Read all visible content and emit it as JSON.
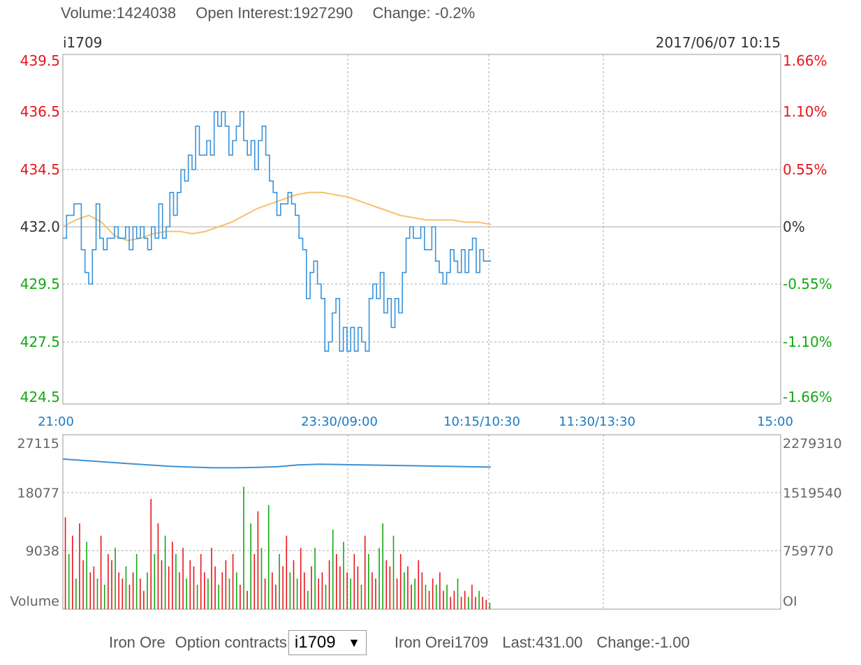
{
  "header": {
    "volume": "Volume:1424038",
    "open_interest": "Open Interest:1927290",
    "change": "Change: -0.2%"
  },
  "chart_data": [
    {
      "type": "line",
      "symbol": "i1709",
      "datetime": "2017/06/07 10:15",
      "y_tick_labels": [
        "439.5",
        "436.5",
        "434.5",
        "432.0",
        "429.5",
        "427.5",
        "424.5"
      ],
      "y_right_labels": [
        "1.66%",
        "1.10%",
        "0.55%",
        "0%",
        "-0.55%",
        "-1.10%",
        "-1.66%"
      ],
      "x_tick_labels": [
        "21:00",
        "23:30/09:00",
        "10:15/10:30",
        "11:30/13:30",
        "15:00"
      ],
      "ylim": [
        424.5,
        439.5
      ],
      "reference_price": 432.0,
      "colors": {
        "price": "#3a92d8",
        "average": "#f5c26b",
        "up": "#e8141a",
        "down": "#12a812",
        "axis_time": "#1a7bc4"
      },
      "series": [
        {
          "values": [
            431.5,
            432.5,
            432.5,
            433,
            433,
            431,
            430,
            429.5,
            431,
            433,
            431.5,
            431,
            431.5,
            431.5,
            432,
            431.5,
            431.5,
            432,
            431,
            432,
            431.5,
            432,
            431.5,
            431,
            432,
            431.5,
            433,
            431.5,
            432,
            433.5,
            432.5,
            433.5,
            434.5,
            434,
            435,
            434.5,
            436,
            435,
            435,
            435.5,
            435,
            436.5,
            436,
            436.5,
            436,
            435,
            435.5,
            436,
            436.5,
            435.5,
            435,
            435.5,
            434.5,
            435.5,
            436,
            435,
            434,
            433.5,
            432.5,
            433,
            433,
            433.5,
            433,
            432.5,
            431.5,
            431,
            429,
            430,
            430.5,
            429.5,
            429,
            427,
            427.5,
            428.5,
            429,
            427,
            428,
            427,
            428,
            427,
            428,
            427.5,
            427,
            429,
            429.5,
            429,
            430,
            428.5,
            429,
            428,
            429,
            428.5,
            430,
            431.5,
            432,
            431.5,
            431.5,
            432,
            431,
            431,
            432,
            430.5,
            430,
            429.5,
            430,
            431,
            430.5,
            430,
            431,
            430,
            431,
            431.5,
            430,
            431,
            430.5,
            430.5
          ]
        },
        {
          "values": [
            432,
            432.3,
            432.5,
            432.2,
            431.6,
            431.4,
            431.5,
            431.7,
            431.8,
            431.8,
            431.7,
            431.8,
            432,
            432.2,
            432.5,
            432.8,
            433,
            433.2,
            433.4,
            433.5,
            433.5,
            433.4,
            433.3,
            433.1,
            432.9,
            432.7,
            432.5,
            432.4,
            432.3,
            432.3,
            432.3,
            432.2,
            432.2,
            432.1
          ]
        }
      ]
    },
    {
      "type": "bar",
      "y_tick_labels": [
        "27115",
        "18077",
        "9038"
      ],
      "y_right_labels": [
        "2279310",
        "1519540",
        "759770",
        "OI"
      ],
      "y_label": "Volume",
      "ylim": [
        0,
        27115
      ],
      "oi_ylim": [
        0,
        2279310
      ],
      "oi_series": [
        2060000,
        2040000,
        2020000,
        2000000,
        1980000,
        1960000,
        1950000,
        1940000,
        1940000,
        1945000,
        1955000,
        1980000,
        1990000,
        1985000,
        1980000,
        1975000,
        1970000,
        1965000,
        1960000,
        1955000,
        1950000
      ],
      "volume_values": [
        15000,
        9000,
        12000,
        5000,
        14000,
        8000,
        11000,
        6000,
        7000,
        5000,
        12000,
        4000,
        9000,
        8000,
        10000,
        6000,
        5000,
        7000,
        4000,
        6000,
        9000,
        5000,
        3000,
        6000,
        18000,
        9000,
        14000,
        8000,
        12000,
        7000,
        11000,
        9000,
        6000,
        10000,
        5000,
        8000,
        7000,
        4000,
        9000,
        6000,
        5000,
        10000,
        7000,
        4000,
        6000,
        8000,
        5000,
        9000,
        6000,
        4000,
        20000,
        3000,
        14000,
        9000,
        16000,
        10000,
        5000,
        17000,
        6000,
        4000,
        9000,
        7000,
        12000,
        6000,
        8000,
        5000,
        10000,
        6000,
        3000,
        7000,
        10000,
        5000,
        6000,
        4000,
        8000,
        13000,
        9000,
        7000,
        11000,
        6000,
        5000,
        9000,
        7000,
        4000,
        12000,
        9000,
        6000,
        5000,
        10000,
        14000,
        8000,
        7000,
        12000,
        5000,
        9000,
        6000,
        7000,
        4000,
        5000,
        8000,
        6000,
        4000,
        3000,
        5000,
        4000,
        6000,
        3000,
        4000,
        2000,
        3000,
        5000,
        2000,
        3000,
        2000,
        4000,
        2000,
        3000,
        2000,
        1500,
        1000
      ],
      "volume_directions": [
        "u",
        "d",
        "u",
        "d",
        "u",
        "u",
        "d",
        "u",
        "u",
        "d",
        "u",
        "d",
        "u",
        "u",
        "d",
        "u",
        "u",
        "d",
        "u",
        "u",
        "d",
        "u",
        "u",
        "d",
        "u",
        "d",
        "u",
        "u",
        "d",
        "u",
        "u",
        "d",
        "u",
        "u",
        "d",
        "u",
        "u",
        "d",
        "u",
        "u",
        "d",
        "u",
        "u",
        "d",
        "u",
        "u",
        "d",
        "u",
        "d",
        "u",
        "d",
        "u",
        "d",
        "u",
        "u",
        "d",
        "u",
        "d",
        "u",
        "u",
        "d",
        "u",
        "u",
        "d",
        "u",
        "d",
        "u",
        "u",
        "d",
        "u",
        "d",
        "u",
        "u",
        "d",
        "u",
        "d",
        "u",
        "u",
        "d",
        "u",
        "d",
        "u",
        "u",
        "d",
        "u",
        "d",
        "u",
        "u",
        "d",
        "d",
        "u",
        "u",
        "d",
        "u",
        "u",
        "d",
        "u",
        "u",
        "d",
        "u",
        "u",
        "d",
        "u",
        "u",
        "d",
        "u",
        "u",
        "d",
        "u",
        "u",
        "d",
        "u",
        "u",
        "d",
        "u",
        "u",
        "d",
        "u",
        "u",
        "d"
      ]
    }
  ],
  "bottom_bar": {
    "product": "Iron Ore",
    "option_label": "Option contracts",
    "selected_contract": "i1709",
    "quote_name": "Iron Orei1709",
    "last": "Last:431.00",
    "change": "Change:-1.00"
  }
}
